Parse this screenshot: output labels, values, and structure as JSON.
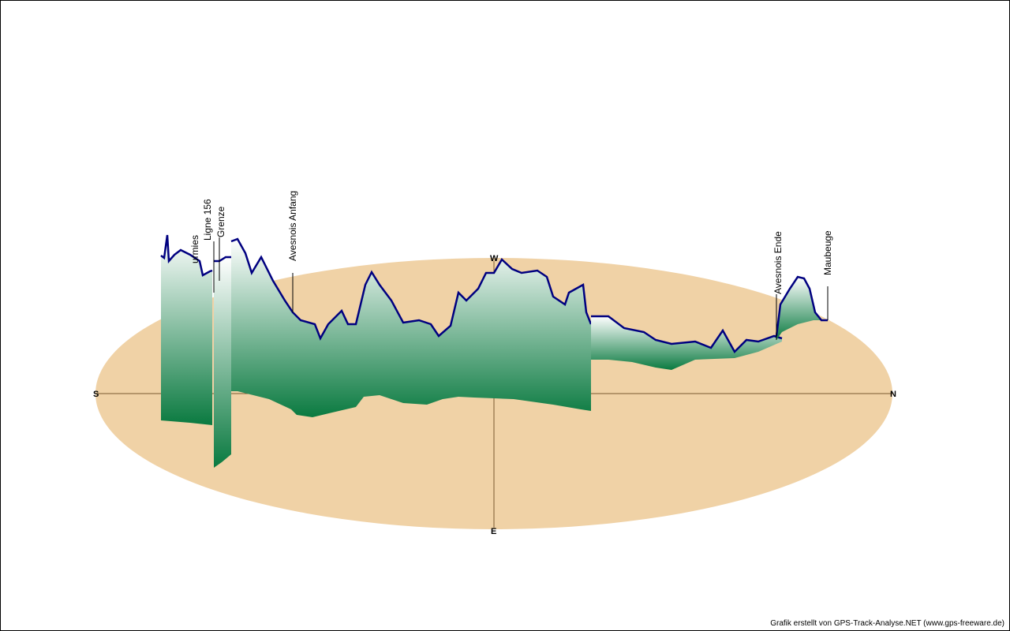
{
  "compass": {
    "south": "S",
    "north": "N",
    "west": "W",
    "east": "E"
  },
  "waypoints": [
    {
      "label": "urmies"
    },
    {
      "label": "Ligne 156"
    },
    {
      "label": "Grenze"
    },
    {
      "label": "Avesnois Anfang"
    },
    {
      "label": "Avesnois Ende"
    },
    {
      "label": "Maubeuge"
    }
  ],
  "colors": {
    "ground": "#F0D2A6",
    "track": "#000080",
    "fill_top": "#ffffff",
    "fill_bottom": "#0a7a40"
  },
  "credit": "Grafik erstellt von GPS-Track-Analyse.NET (www.gps-freeware.de)"
}
